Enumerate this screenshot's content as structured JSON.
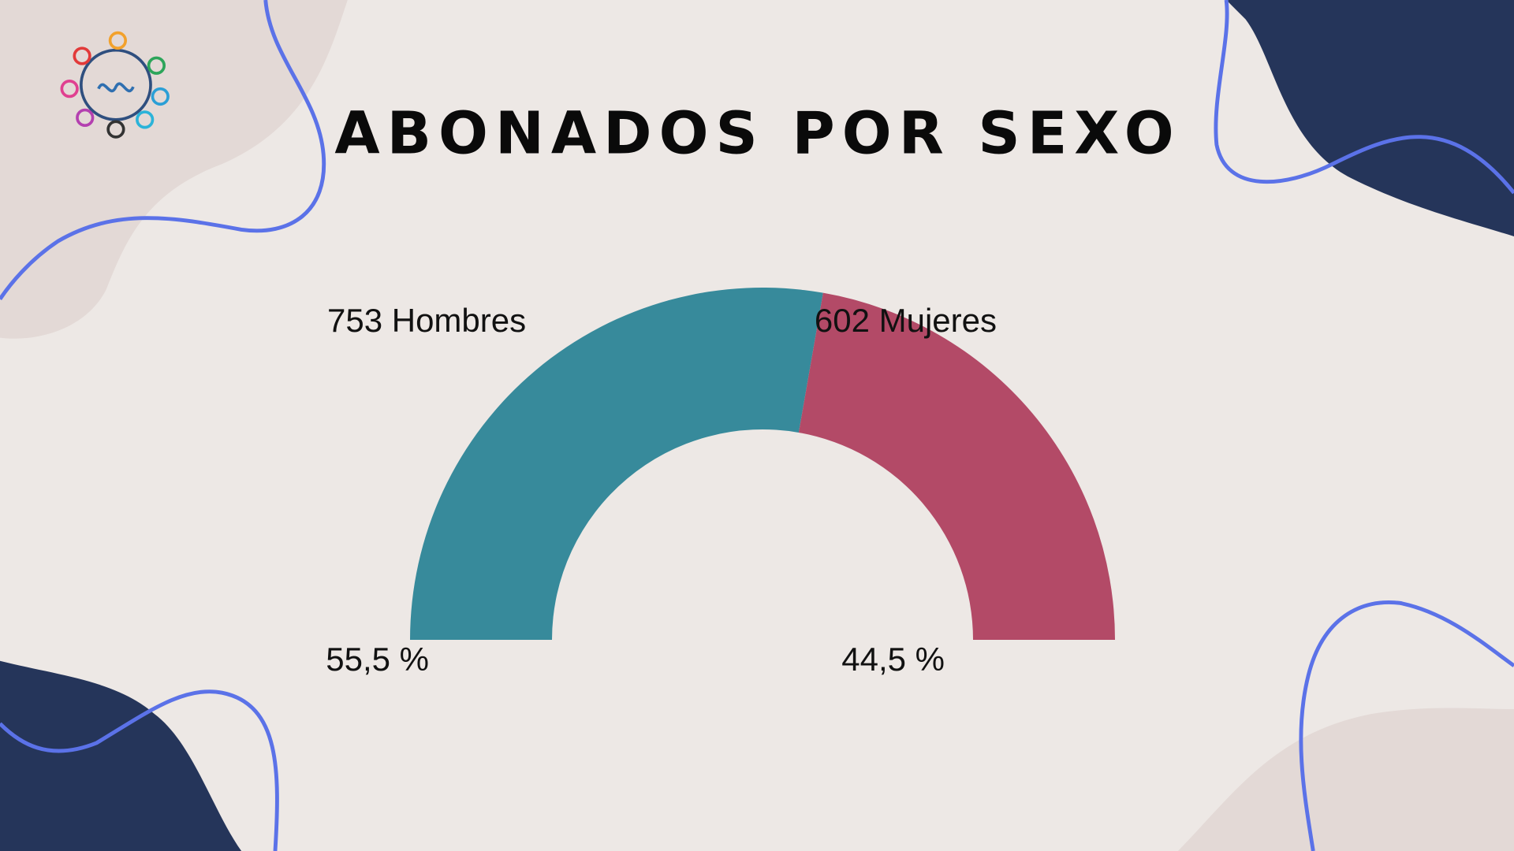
{
  "chart_data": {
    "type": "half-donut",
    "title": "ABONADOS POR SEXO",
    "values": [
      55.5,
      44.5
    ],
    "value_labels": [
      "55,5 %",
      "44,5 %"
    ],
    "counts": [
      753,
      602
    ],
    "count_labels": [
      "753 Hombres",
      "602 Mujeres"
    ],
    "colors": [
      "#378a9b",
      "#b34a67"
    ]
  }
}
